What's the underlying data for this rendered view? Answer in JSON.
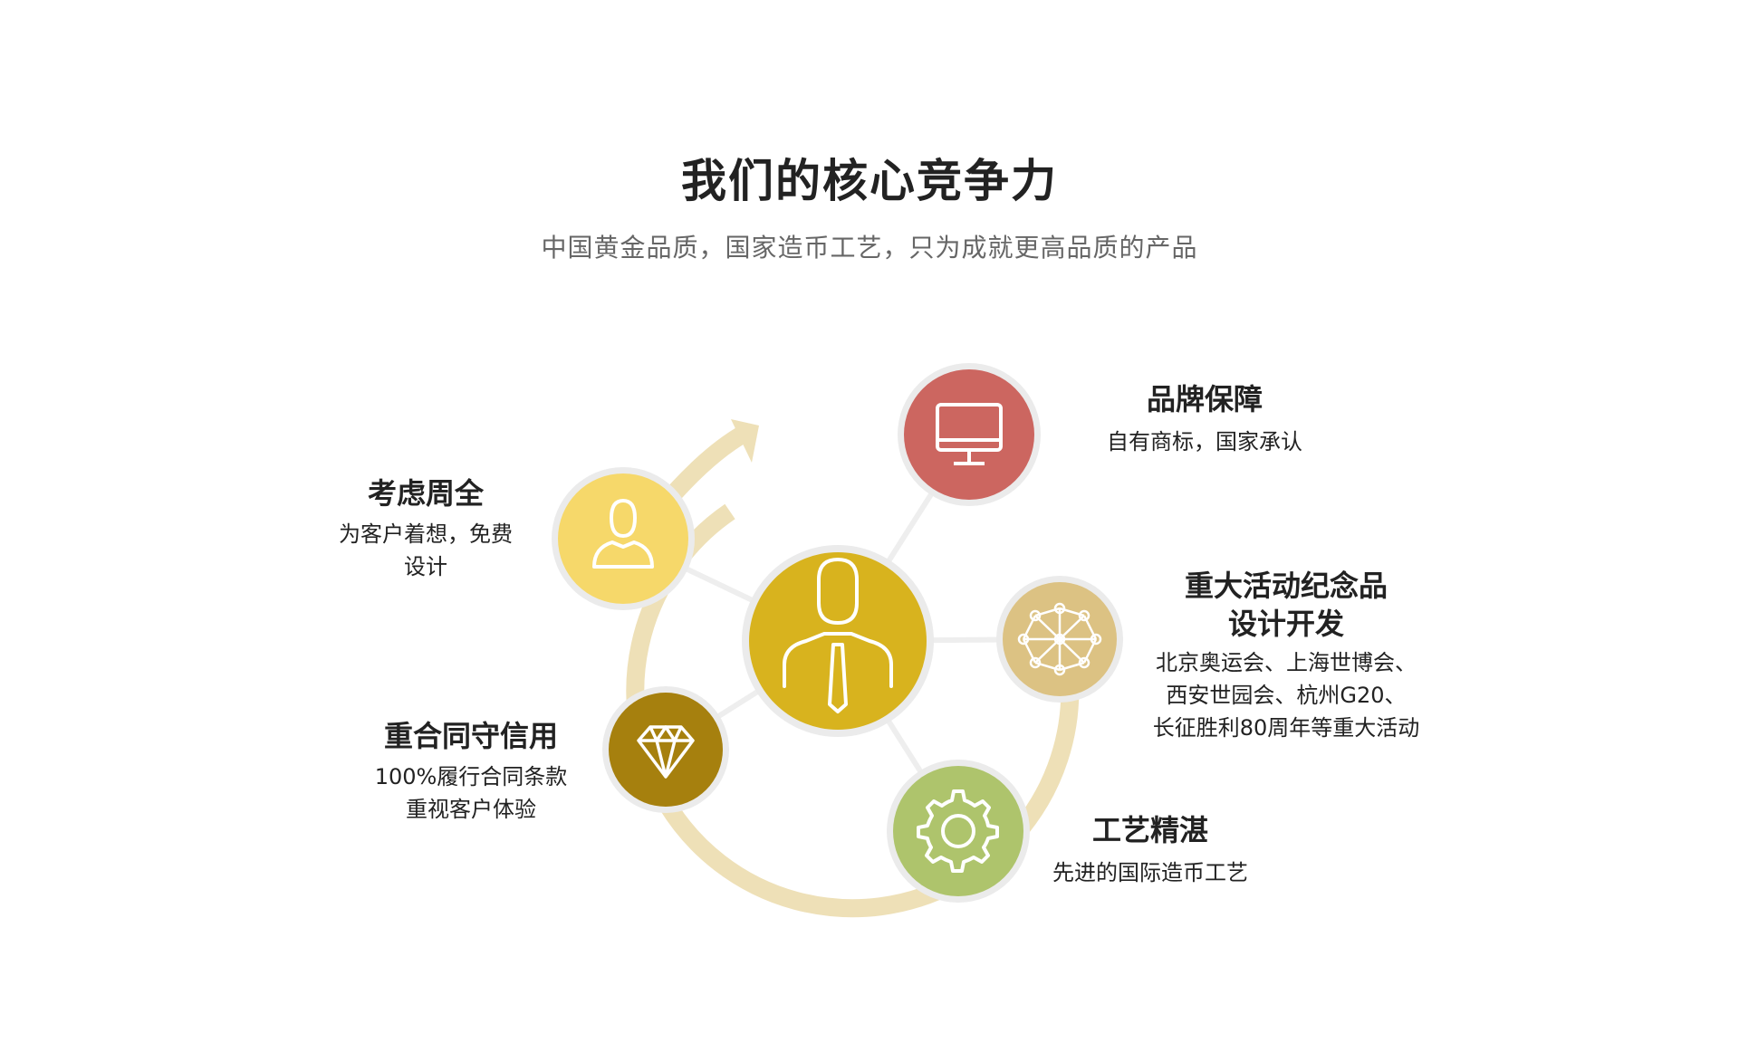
{
  "header": {
    "title": "我们的核心竞争力",
    "subtitle": "中国黄金品质，国家造币工艺，只为成就更高品质的产品"
  },
  "colors": {
    "center": "#d8b31e",
    "brand": "#cc6660",
    "custom": "#f6d86a",
    "events": "#dcc283",
    "credit": "#a6800e",
    "craft": "#aec46c",
    "ring": "#eee0b7",
    "connector": "#eeeeee"
  },
  "nodes": {
    "center": {
      "icon": "businessman-icon"
    },
    "brand": {
      "icon": "monitor-icon",
      "title": "品牌保障",
      "lines": [
        "自有商标，国家承认"
      ]
    },
    "custom": {
      "icon": "user-icon",
      "title": "考虑周全",
      "lines": [
        "为客户着想，免费",
        "设计"
      ]
    },
    "events": {
      "icon": "network-icon",
      "title_lines": [
        "重大活动纪念品",
        "设计开发"
      ],
      "lines": [
        "北京奥运会、上海世博会、",
        "西安世园会、杭州G20、",
        "长征胜利80周年等重大活动"
      ]
    },
    "credit": {
      "icon": "diamond-icon",
      "title": "重合同守信用",
      "lines": [
        "100%履行合同条款",
        "重视客户体验"
      ]
    },
    "craft": {
      "icon": "gear-icon",
      "title": "工艺精湛",
      "lines": [
        "先进的国际造币工艺"
      ]
    }
  }
}
